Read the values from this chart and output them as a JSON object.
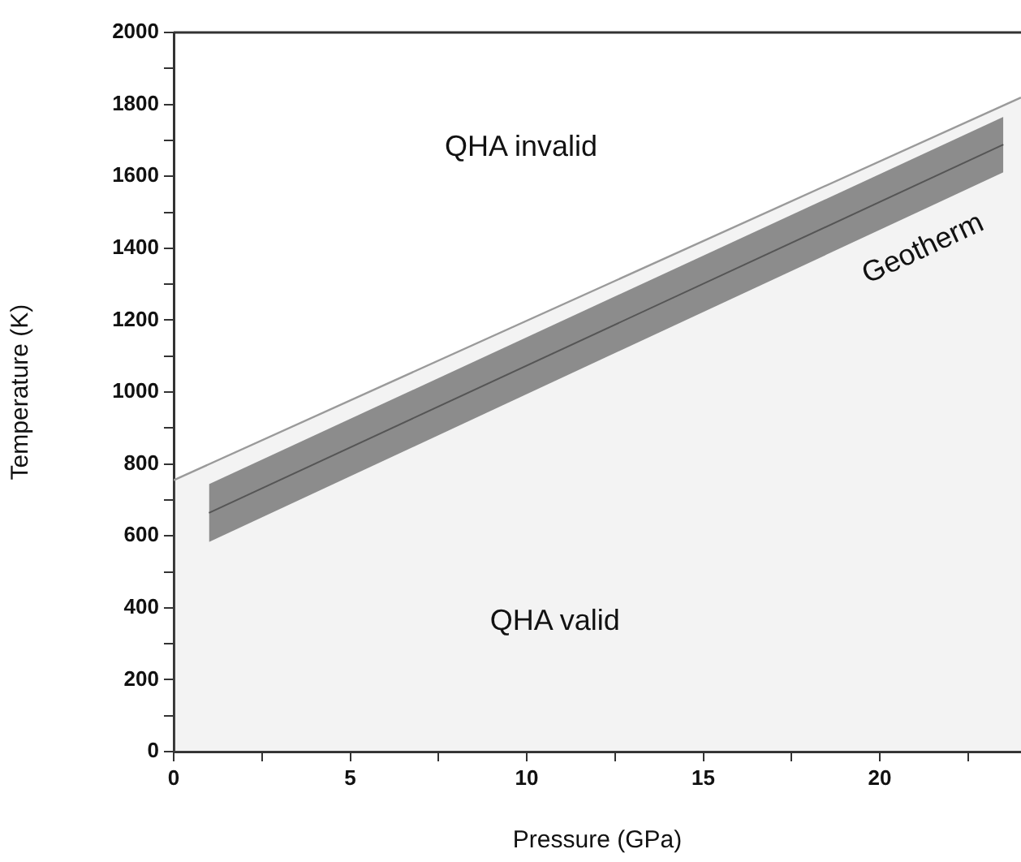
{
  "chart_data": {
    "type": "line",
    "xlabel": "Pressure (GPa)",
    "ylabel": "Temperature (K)",
    "xlim": [
      0,
      24
    ],
    "ylim": [
      0,
      2000
    ],
    "xticks": [
      0,
      {
        "value": 2.5,
        "label": null
      },
      5,
      {
        "value": 7.5,
        "label": null
      },
      10,
      {
        "value": 12.5,
        "label": null
      },
      15,
      {
        "value": 17.5,
        "label": null
      },
      20,
      {
        "value": 22.5,
        "label": null
      }
    ],
    "yticks": [
      0,
      {
        "value": 100,
        "label": null
      },
      200,
      {
        "value": 300,
        "label": null
      },
      400,
      {
        "value": 500,
        "label": null
      },
      600,
      {
        "value": 700,
        "label": null
      },
      800,
      {
        "value": 900,
        "label": null
      },
      1000,
      {
        "value": 1100,
        "label": null
      },
      1200,
      {
        "value": 1300,
        "label": null
      },
      1400,
      {
        "value": 1500,
        "label": null
      },
      1600,
      {
        "value": 1700,
        "label": null
      },
      1800,
      {
        "value": 1900,
        "label": null
      },
      2000
    ],
    "series": [
      {
        "type": "area",
        "color": "#9a9a9a",
        "x": [
          0,
          24
        ],
        "values": [
          755,
          1819
        ]
      },
      {
        "name": "Geotherm",
        "color": "#555555",
        "x": [
          1,
          23.5
        ],
        "values": [
          664,
          1688
        ],
        "lower": [
          583,
          1611
        ],
        "upper": [
          744,
          1765
        ]
      }
    ],
    "annotations": [
      "QHA invalid",
      "QHA valid"
    ],
    "grid": false,
    "legend": false,
    "marker": "none",
    "line_style": "solid"
  }
}
